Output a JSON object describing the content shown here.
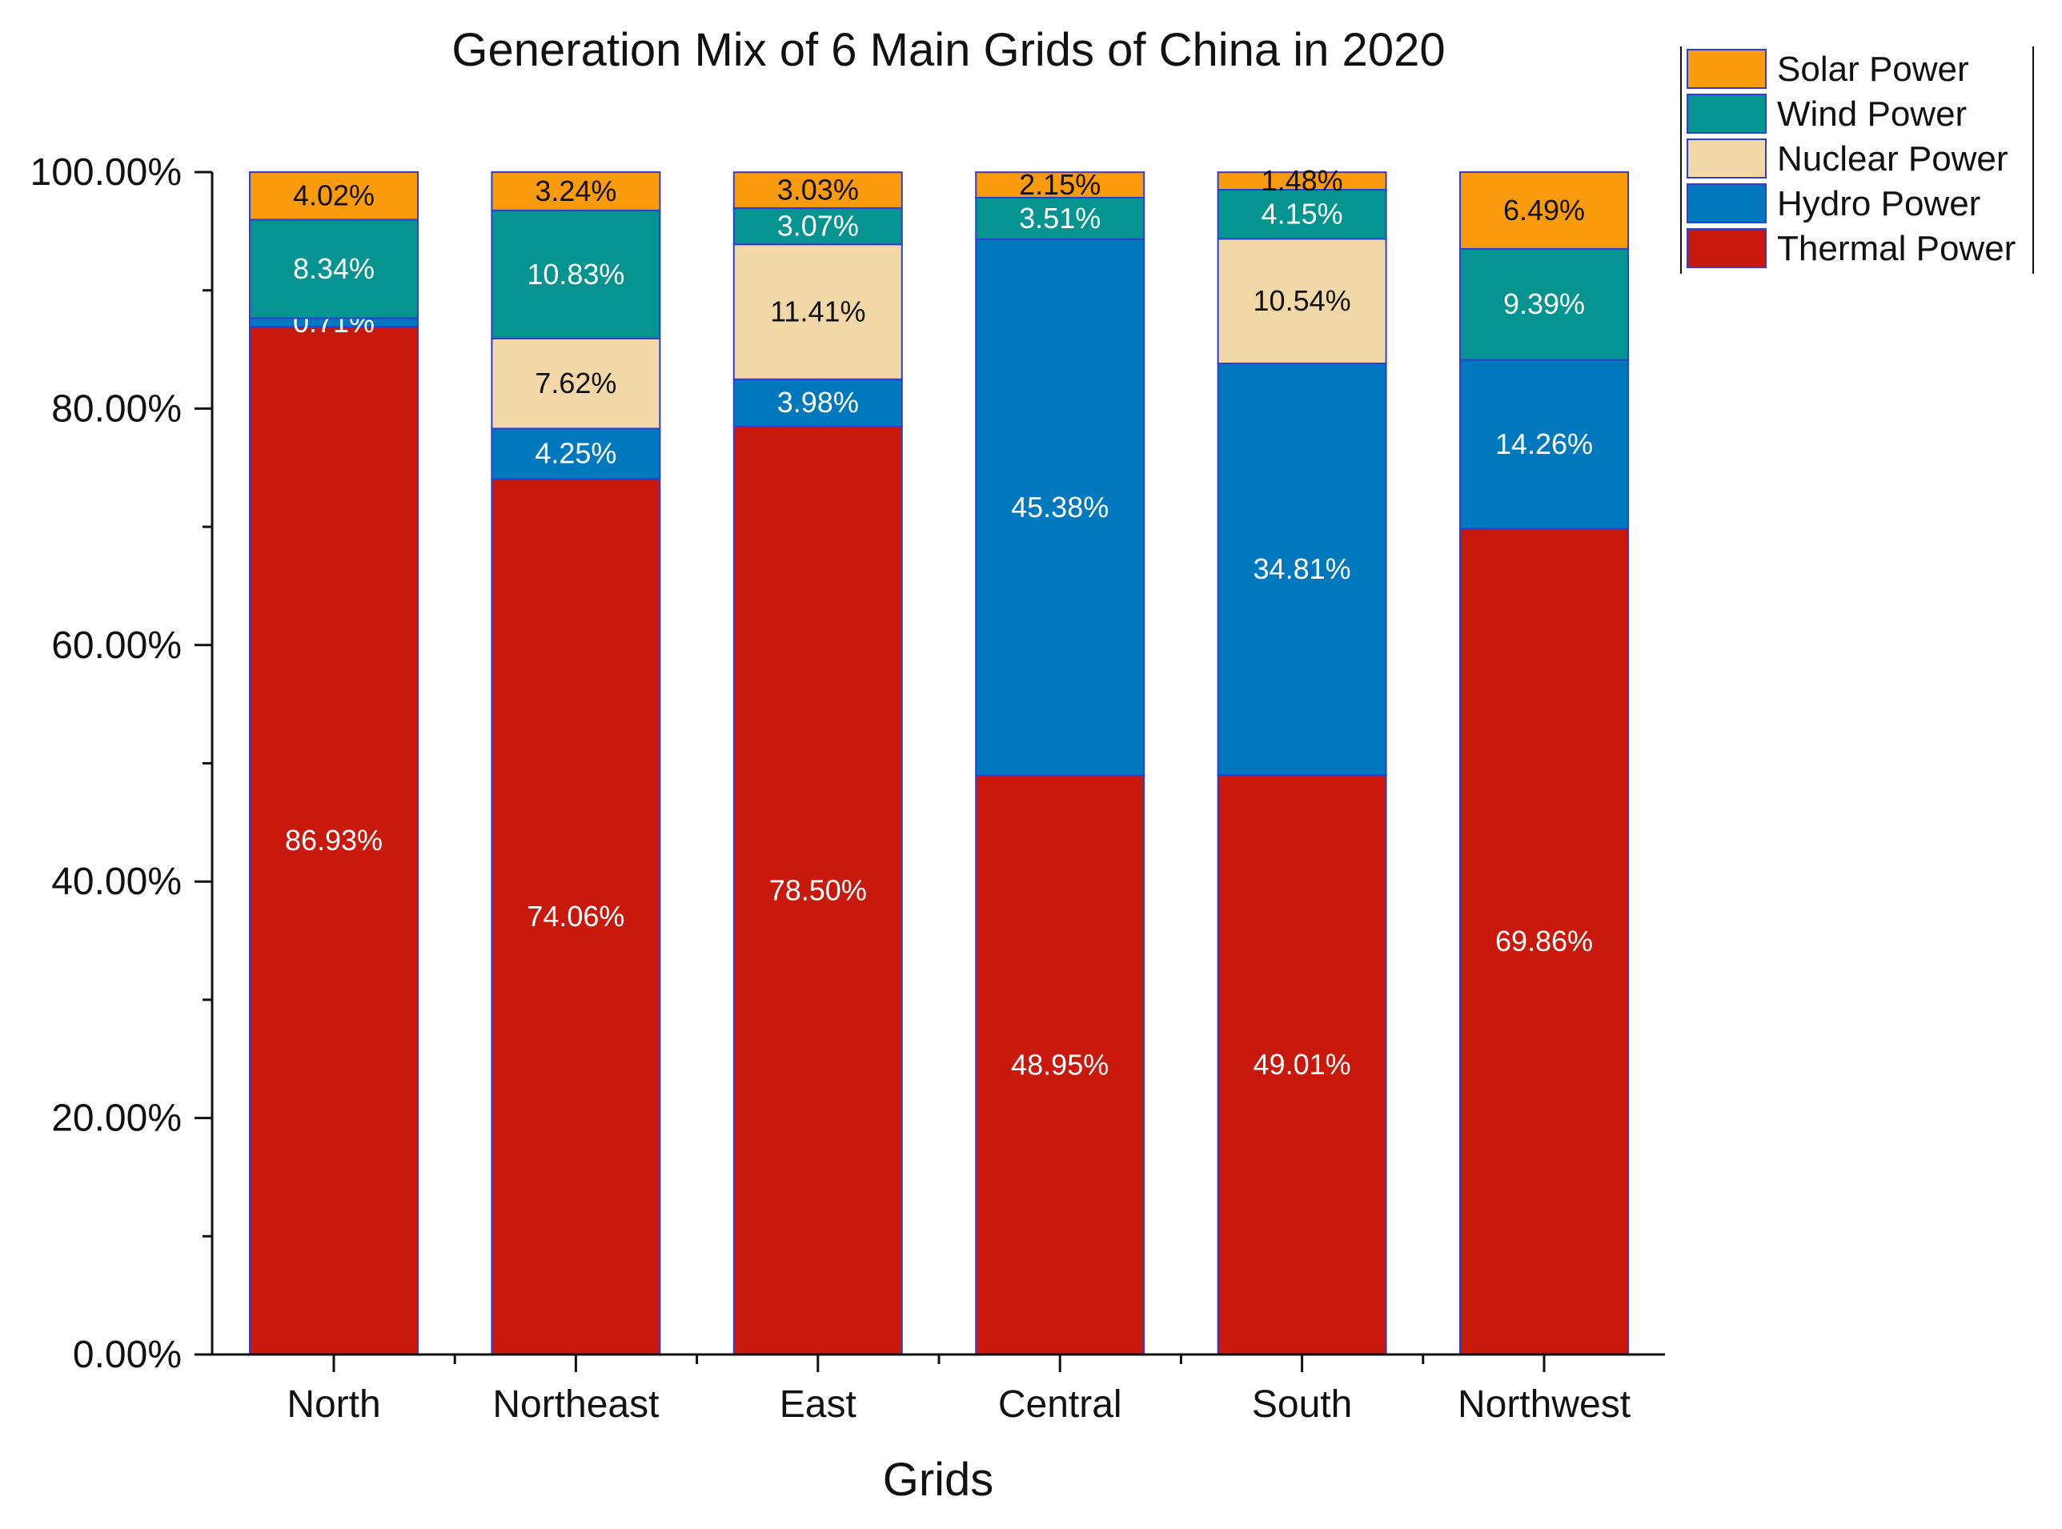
{
  "chart_data": {
    "type": "bar",
    "stacked": true,
    "title": "Generation Mix of 6 Main Grids of China in 2020",
    "xlabel": "Grids",
    "ylabel": "",
    "ylim": [
      0,
      100
    ],
    "y_ticks": [
      "0.00%",
      "20.00%",
      "40.00%",
      "60.00%",
      "80.00%",
      "100.00%"
    ],
    "categories": [
      "North",
      "Northeast",
      "East",
      "Central",
      "South",
      "Northwest"
    ],
    "series": [
      {
        "name": "Thermal Power",
        "color": "#c8190c",
        "label_color": "#ffffff",
        "values": [
          86.93,
          74.06,
          78.5,
          48.95,
          49.01,
          69.86
        ],
        "labels": [
          "86.93%",
          "74.06%",
          "78.50%",
          "48.95%",
          "49.01%",
          "69.86%"
        ]
      },
      {
        "name": "Hydro Power",
        "color": "#0078be",
        "label_color": "#ffffff",
        "values": [
          0.71,
          4.25,
          3.98,
          45.38,
          34.81,
          14.26
        ],
        "labels": [
          "0.71%",
          "4.25%",
          "3.98%",
          "45.38%",
          "34.81%",
          "14.26%"
        ]
      },
      {
        "name": "Nuclear Power",
        "color": "#f2d8a6",
        "label_color": "#111111",
        "values": [
          0,
          7.62,
          11.41,
          0,
          10.54,
          0
        ],
        "labels": [
          "",
          "7.62%",
          "11.41%",
          "",
          "10.54%",
          ""
        ]
      },
      {
        "name": "Wind Power",
        "color": "#05948f",
        "label_color": "#ffffff",
        "values": [
          8.34,
          10.83,
          3.07,
          3.51,
          4.15,
          9.39
        ],
        "labels": [
          "8.34%",
          "10.83%",
          "3.07%",
          "3.51%",
          "4.15%",
          "9.39%"
        ]
      },
      {
        "name": "Solar Power",
        "color": "#f99b0d",
        "label_color": "#111111",
        "values": [
          4.02,
          3.24,
          3.03,
          2.15,
          1.48,
          6.49
        ],
        "labels": [
          "4.02%",
          "3.24%",
          "3.03%",
          "2.15%",
          "1.48%",
          "6.49%"
        ]
      }
    ],
    "legend": {
      "placement": "top-right",
      "order": [
        "Solar Power",
        "Wind Power",
        "Nuclear Power",
        "Hydro Power",
        "Thermal Power"
      ]
    },
    "bar_edge_color": "#2b3fd6"
  }
}
